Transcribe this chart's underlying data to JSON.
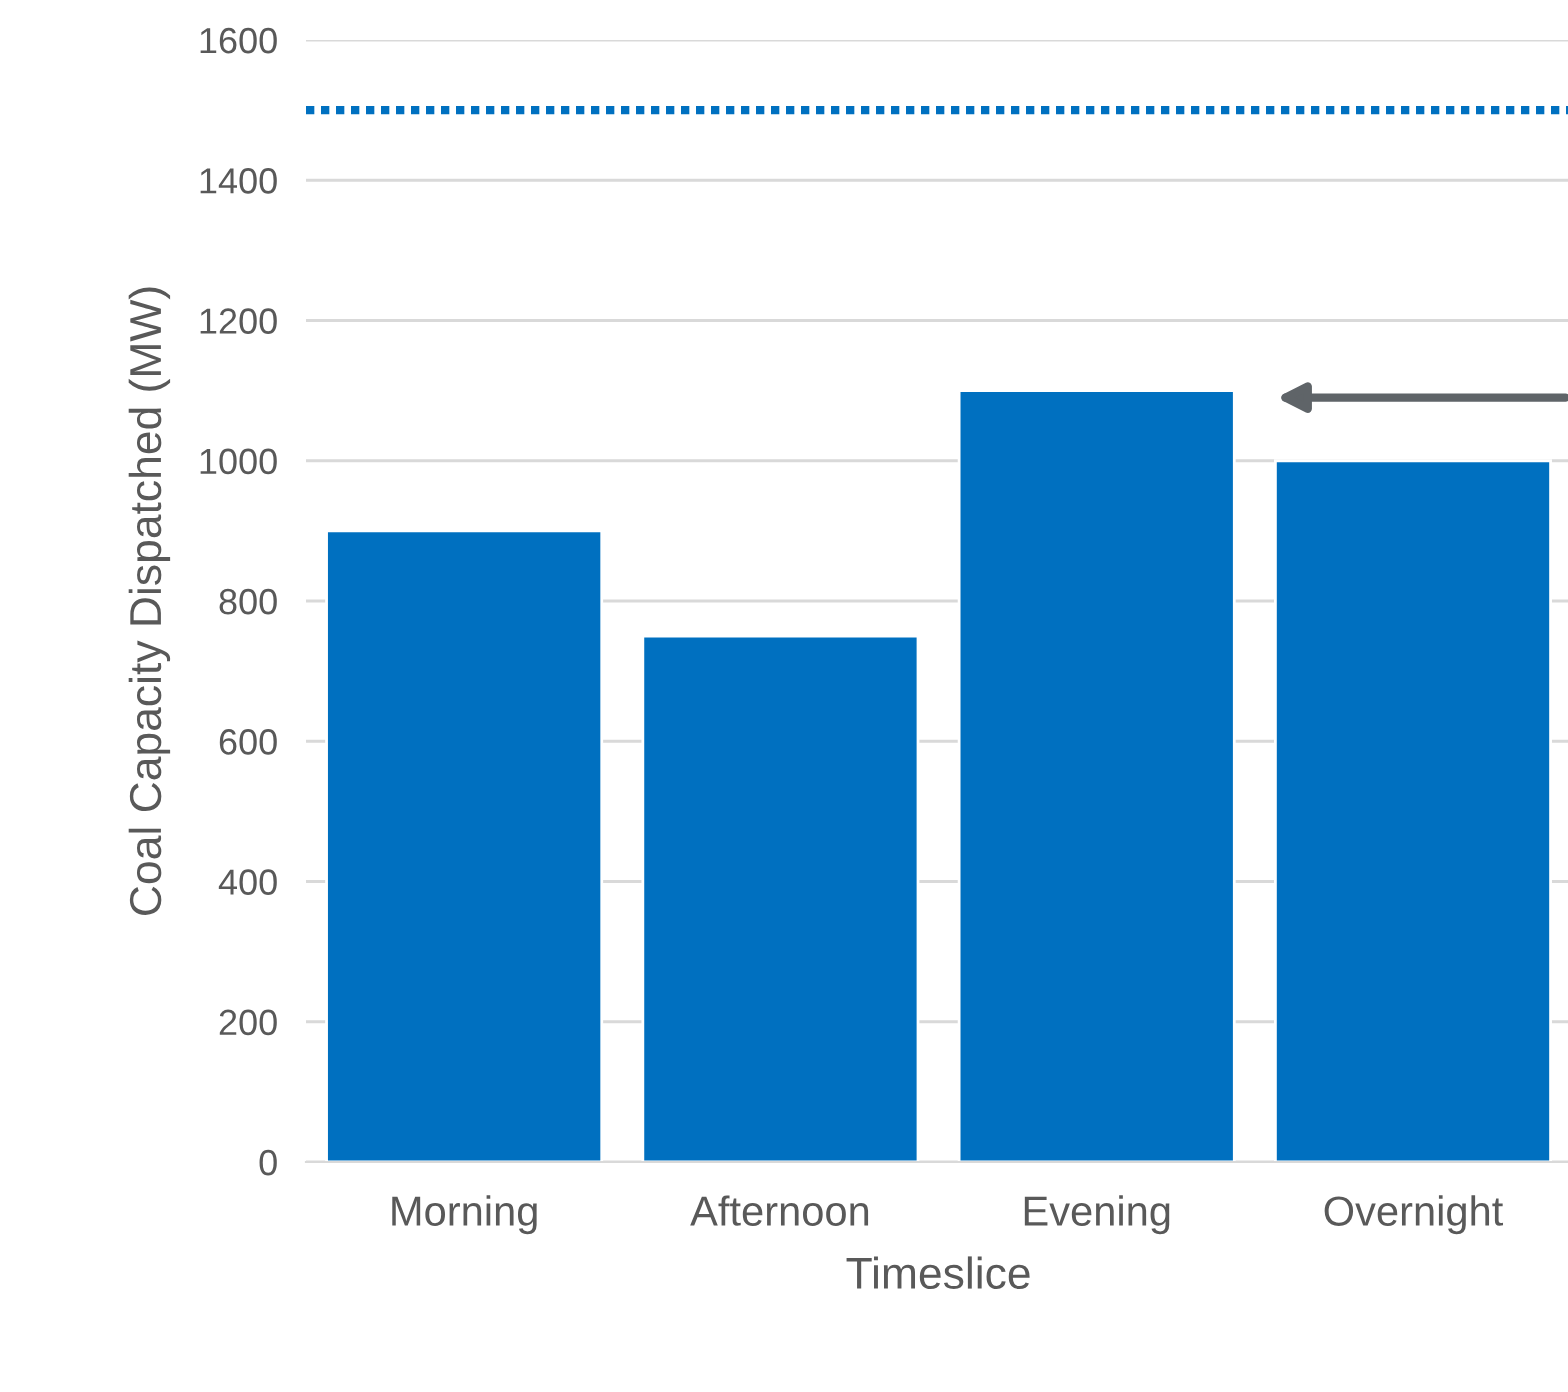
{
  "chart_data": {
    "type": "bar",
    "xlabel": "Timeslice",
    "ylabel": "Coal Capacity Dispatched (MW)",
    "categories": [
      "Morning",
      "Afternoon",
      "Evening",
      "Overnight"
    ],
    "values": [
      900,
      750,
      1100,
      1000
    ],
    "color": "#0070c0",
    "ylim": [
      0,
      1600
    ],
    "yticks": [
      0,
      200,
      400,
      600,
      800,
      1000,
      1200,
      1400,
      1600
    ],
    "grid": "y",
    "ref_lines": [
      {
        "axis": "y",
        "value": 1500,
        "color": "#0070c0",
        "line_style": "dotted"
      }
    ]
  }
}
